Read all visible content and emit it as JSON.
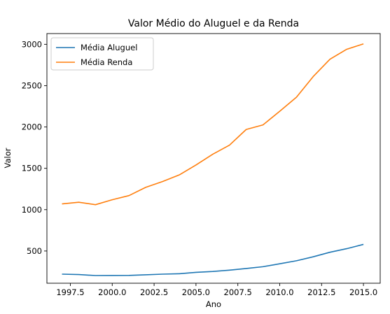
{
  "chart_data": {
    "type": "line",
    "title": "Valor Médio do Aluguel e da Renda",
    "xlabel": "Ano",
    "ylabel": "Valor",
    "xlim": [
      1996.1,
      2016.0
    ],
    "ylim": [
      110,
      3130
    ],
    "xticks": [
      "1997.5",
      "2000.0",
      "2002.5",
      "2005.0",
      "2007.5",
      "2010.0",
      "2012.5",
      "2015.0"
    ],
    "xtick_values": [
      1997.5,
      2000.0,
      2002.5,
      2005.0,
      2007.5,
      2010.0,
      2012.5,
      2015.0
    ],
    "yticks": [
      "500",
      "1000",
      "1500",
      "2000",
      "2500",
      "3000"
    ],
    "ytick_values": [
      500,
      1000,
      1500,
      2000,
      2500,
      3000
    ],
    "grid": false,
    "legend_position": "top-left",
    "x": [
      1997,
      1998,
      1999,
      2000,
      2001,
      2002,
      2003,
      2004,
      2005,
      2006,
      2007,
      2008,
      2009,
      2010,
      2011,
      2012,
      2013,
      2014,
      2015
    ],
    "series": [
      {
        "name": "Média Aluguel",
        "color": "#1f77b4",
        "values": [
          220,
          215,
          203,
          204,
          205,
          212,
          220,
          225,
          242,
          252,
          268,
          288,
          310,
          345,
          382,
          430,
          485,
          528,
          580
        ]
      },
      {
        "name": "Média Renda",
        "color": "#ff7f0e",
        "values": [
          1070,
          1090,
          1060,
          1120,
          1170,
          1270,
          1340,
          1420,
          1540,
          1670,
          1780,
          1970,
          2025,
          2190,
          2360,
          2610,
          2820,
          2940,
          3005
        ]
      }
    ]
  }
}
